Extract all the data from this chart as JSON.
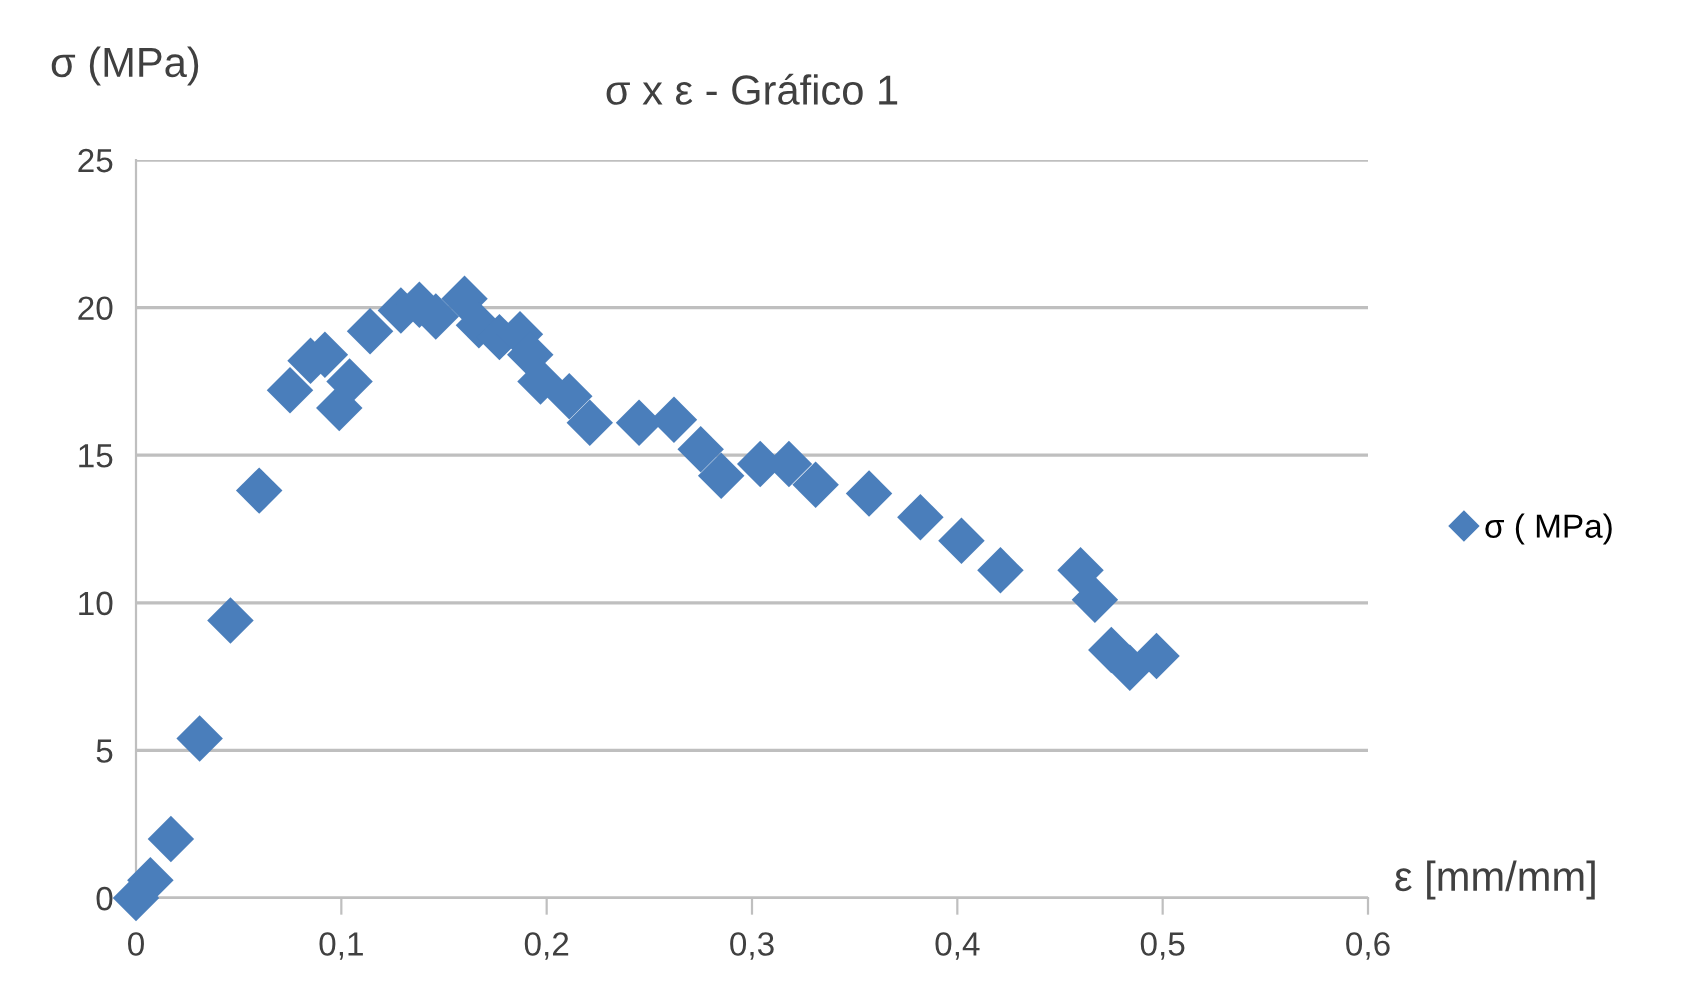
{
  "chart_data": {
    "type": "scatter",
    "title": "σ x ε - Gráfico 1",
    "xlabel": "ε [mm/mm]",
    "ylabel": "σ (MPa)",
    "xlim": [
      0,
      0.6
    ],
    "xticks": [
      0,
      {
        "value": 0.1,
        "label": "0,1"
      },
      {
        "value": 0.2,
        "label": "0,2"
      },
      {
        "value": 0.3,
        "label": "0,3"
      },
      {
        "value": 0.4,
        "label": "0,4"
      },
      {
        "value": 0.5,
        "label": "0,5"
      },
      {
        "value": 0.6,
        "label": "0,6"
      }
    ],
    "ylim": [
      0,
      25
    ],
    "yticks": [
      0,
      5,
      10,
      15,
      20,
      25
    ],
    "grid": "y",
    "legend": "right",
    "marker": "diamond",
    "series": [
      {
        "name": "σ ( MPa)",
        "color": "#4a7ebb",
        "x": [
          0,
          0.007,
          0.017,
          0.031,
          0.046,
          0.06,
          0.075,
          0.085,
          0.092,
          0.099,
          0.104,
          0.114,
          0.129,
          0.138,
          0.146,
          0.16,
          0.167,
          0.177,
          0.187,
          0.192,
          0.197,
          0.211,
          0.221,
          0.245,
          0.262,
          0.275,
          0.285,
          0.304,
          0.318,
          0.331,
          0.357,
          0.382,
          0.402,
          0.421,
          0.46,
          0.467,
          0.475,
          0.484,
          0.497
        ],
        "values": [
          0,
          0.6,
          2,
          5.4,
          9.4,
          13.8,
          17.2,
          18.2,
          18.4,
          16.6,
          17.5,
          19.2,
          19.9,
          20.1,
          19.7,
          20.3,
          19.4,
          19,
          19.1,
          18.4,
          17.5,
          17,
          16.1,
          16.1,
          16.2,
          15.2,
          14.3,
          14.7,
          14.7,
          14,
          13.7,
          12.9,
          12.1,
          11.1,
          11.1,
          10.1,
          8.4,
          7.8,
          8.2
        ]
      }
    ]
  }
}
